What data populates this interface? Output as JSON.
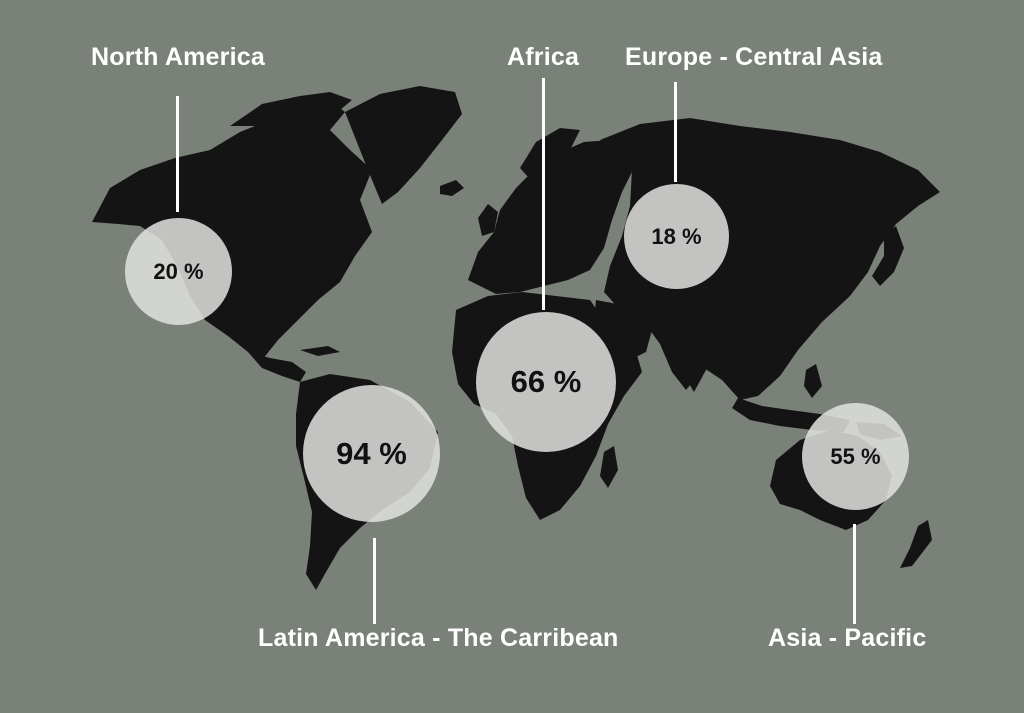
{
  "colors": {
    "background": "#7a8178",
    "land": "#141414",
    "bubble": "#e1e2de",
    "label": "#ffffff"
  },
  "regions": [
    {
      "key": "north_america",
      "name": "North America",
      "value": "20 %"
    },
    {
      "key": "africa",
      "name": "Africa",
      "value": "66 %"
    },
    {
      "key": "europe_central_asia",
      "name": "Europe - Central Asia",
      "value": "18 %"
    },
    {
      "key": "latin_america",
      "name": "Latin America - The Carribean",
      "value": "94 %"
    },
    {
      "key": "asia_pacific",
      "name": "Asia - Pacific",
      "value": "55 %"
    }
  ]
}
